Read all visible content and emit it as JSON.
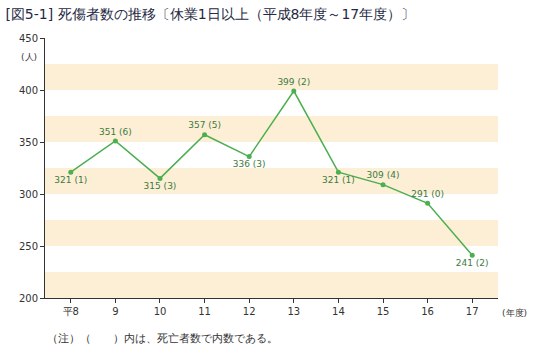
{
  "chart_data": {
    "type": "line",
    "title": "[図5-1] 死傷者数の推移〔休業1日以上（平成8年度～17年度）〕",
    "y_label": "(人)",
    "x_label": "(年度)",
    "categories": [
      "平8",
      "9",
      "10",
      "11",
      "12",
      "13",
      "14",
      "15",
      "16",
      "17"
    ],
    "values": [
      321,
      351,
      315,
      357,
      336,
      399,
      321,
      309,
      291,
      241
    ],
    "value_labels": [
      "321 (1)",
      "351 (6)",
      "315 (3)",
      "357 (5)",
      "336 (3)",
      "399 (2)",
      "321 (1)",
      "309 (4)",
      "291 (0)",
      "241 (2)"
    ],
    "data_labels": true,
    "color": "#4caf50",
    "marker": "circle",
    "ylim": [
      200,
      450
    ],
    "yticks": [
      200,
      250,
      300,
      350,
      400,
      450
    ],
    "grid": true,
    "annotations": [
      "（注）（　　）内は、死亡者数で内数である。"
    ]
  }
}
